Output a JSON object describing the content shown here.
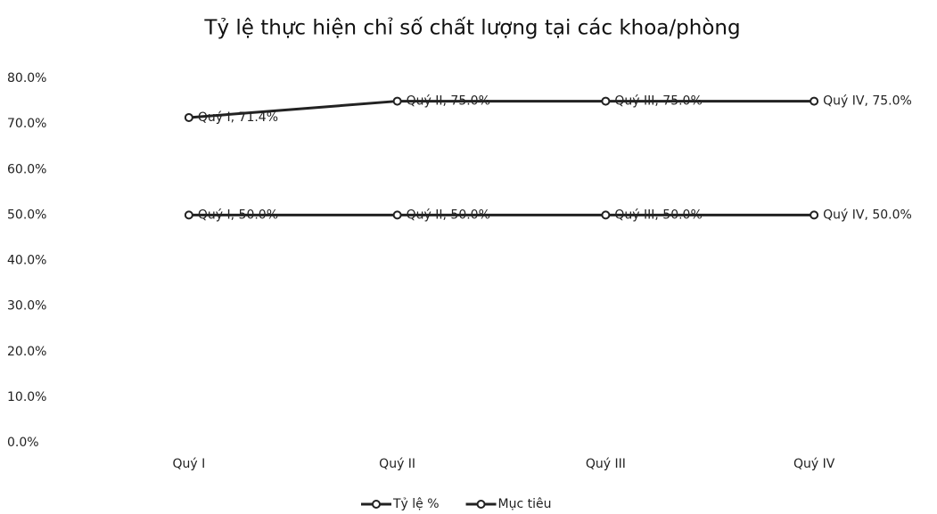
{
  "chart_data": {
    "type": "line",
    "title": "Tỷ lệ thực hiện chỉ số chất lượng tại các khoa/phòng",
    "categories": [
      "Quý I",
      "Quý II",
      "Quý III",
      "Quý IV"
    ],
    "series": [
      {
        "name": "Tỷ lệ %",
        "color": "#222222",
        "values": [
          71.4,
          75.0,
          75.0,
          75.0
        ],
        "value_labels": [
          "Quý I, 71.4%",
          "Quý II, 75.0%",
          "Quý III, 75.0%",
          "Quý IV, 75.0%"
        ]
      },
      {
        "name": "Mục tiêu",
        "color": "#222222",
        "values": [
          50.0,
          50.0,
          50.0,
          50.0
        ],
        "value_labels": [
          "Quý I, 50.0%",
          "Quý II, 50.0%",
          "Quý III, 50.0%",
          "Quý IV, 50.0%"
        ]
      }
    ],
    "ylim": [
      0,
      80
    ],
    "yticks": [
      {
        "value": 0,
        "label": "0.0%"
      },
      {
        "value": 10,
        "label": "10.0%"
      },
      {
        "value": 20,
        "label": "20.0%"
      },
      {
        "value": 30,
        "label": "30.0%"
      },
      {
        "value": 40,
        "label": "40.0%"
      },
      {
        "value": 50,
        "label": "50.0%"
      },
      {
        "value": 60,
        "label": "60.0%"
      },
      {
        "value": 70,
        "label": "70.0%"
      },
      {
        "value": 80,
        "label": "80.0%"
      }
    ],
    "grid": false,
    "legend": "bottom"
  }
}
